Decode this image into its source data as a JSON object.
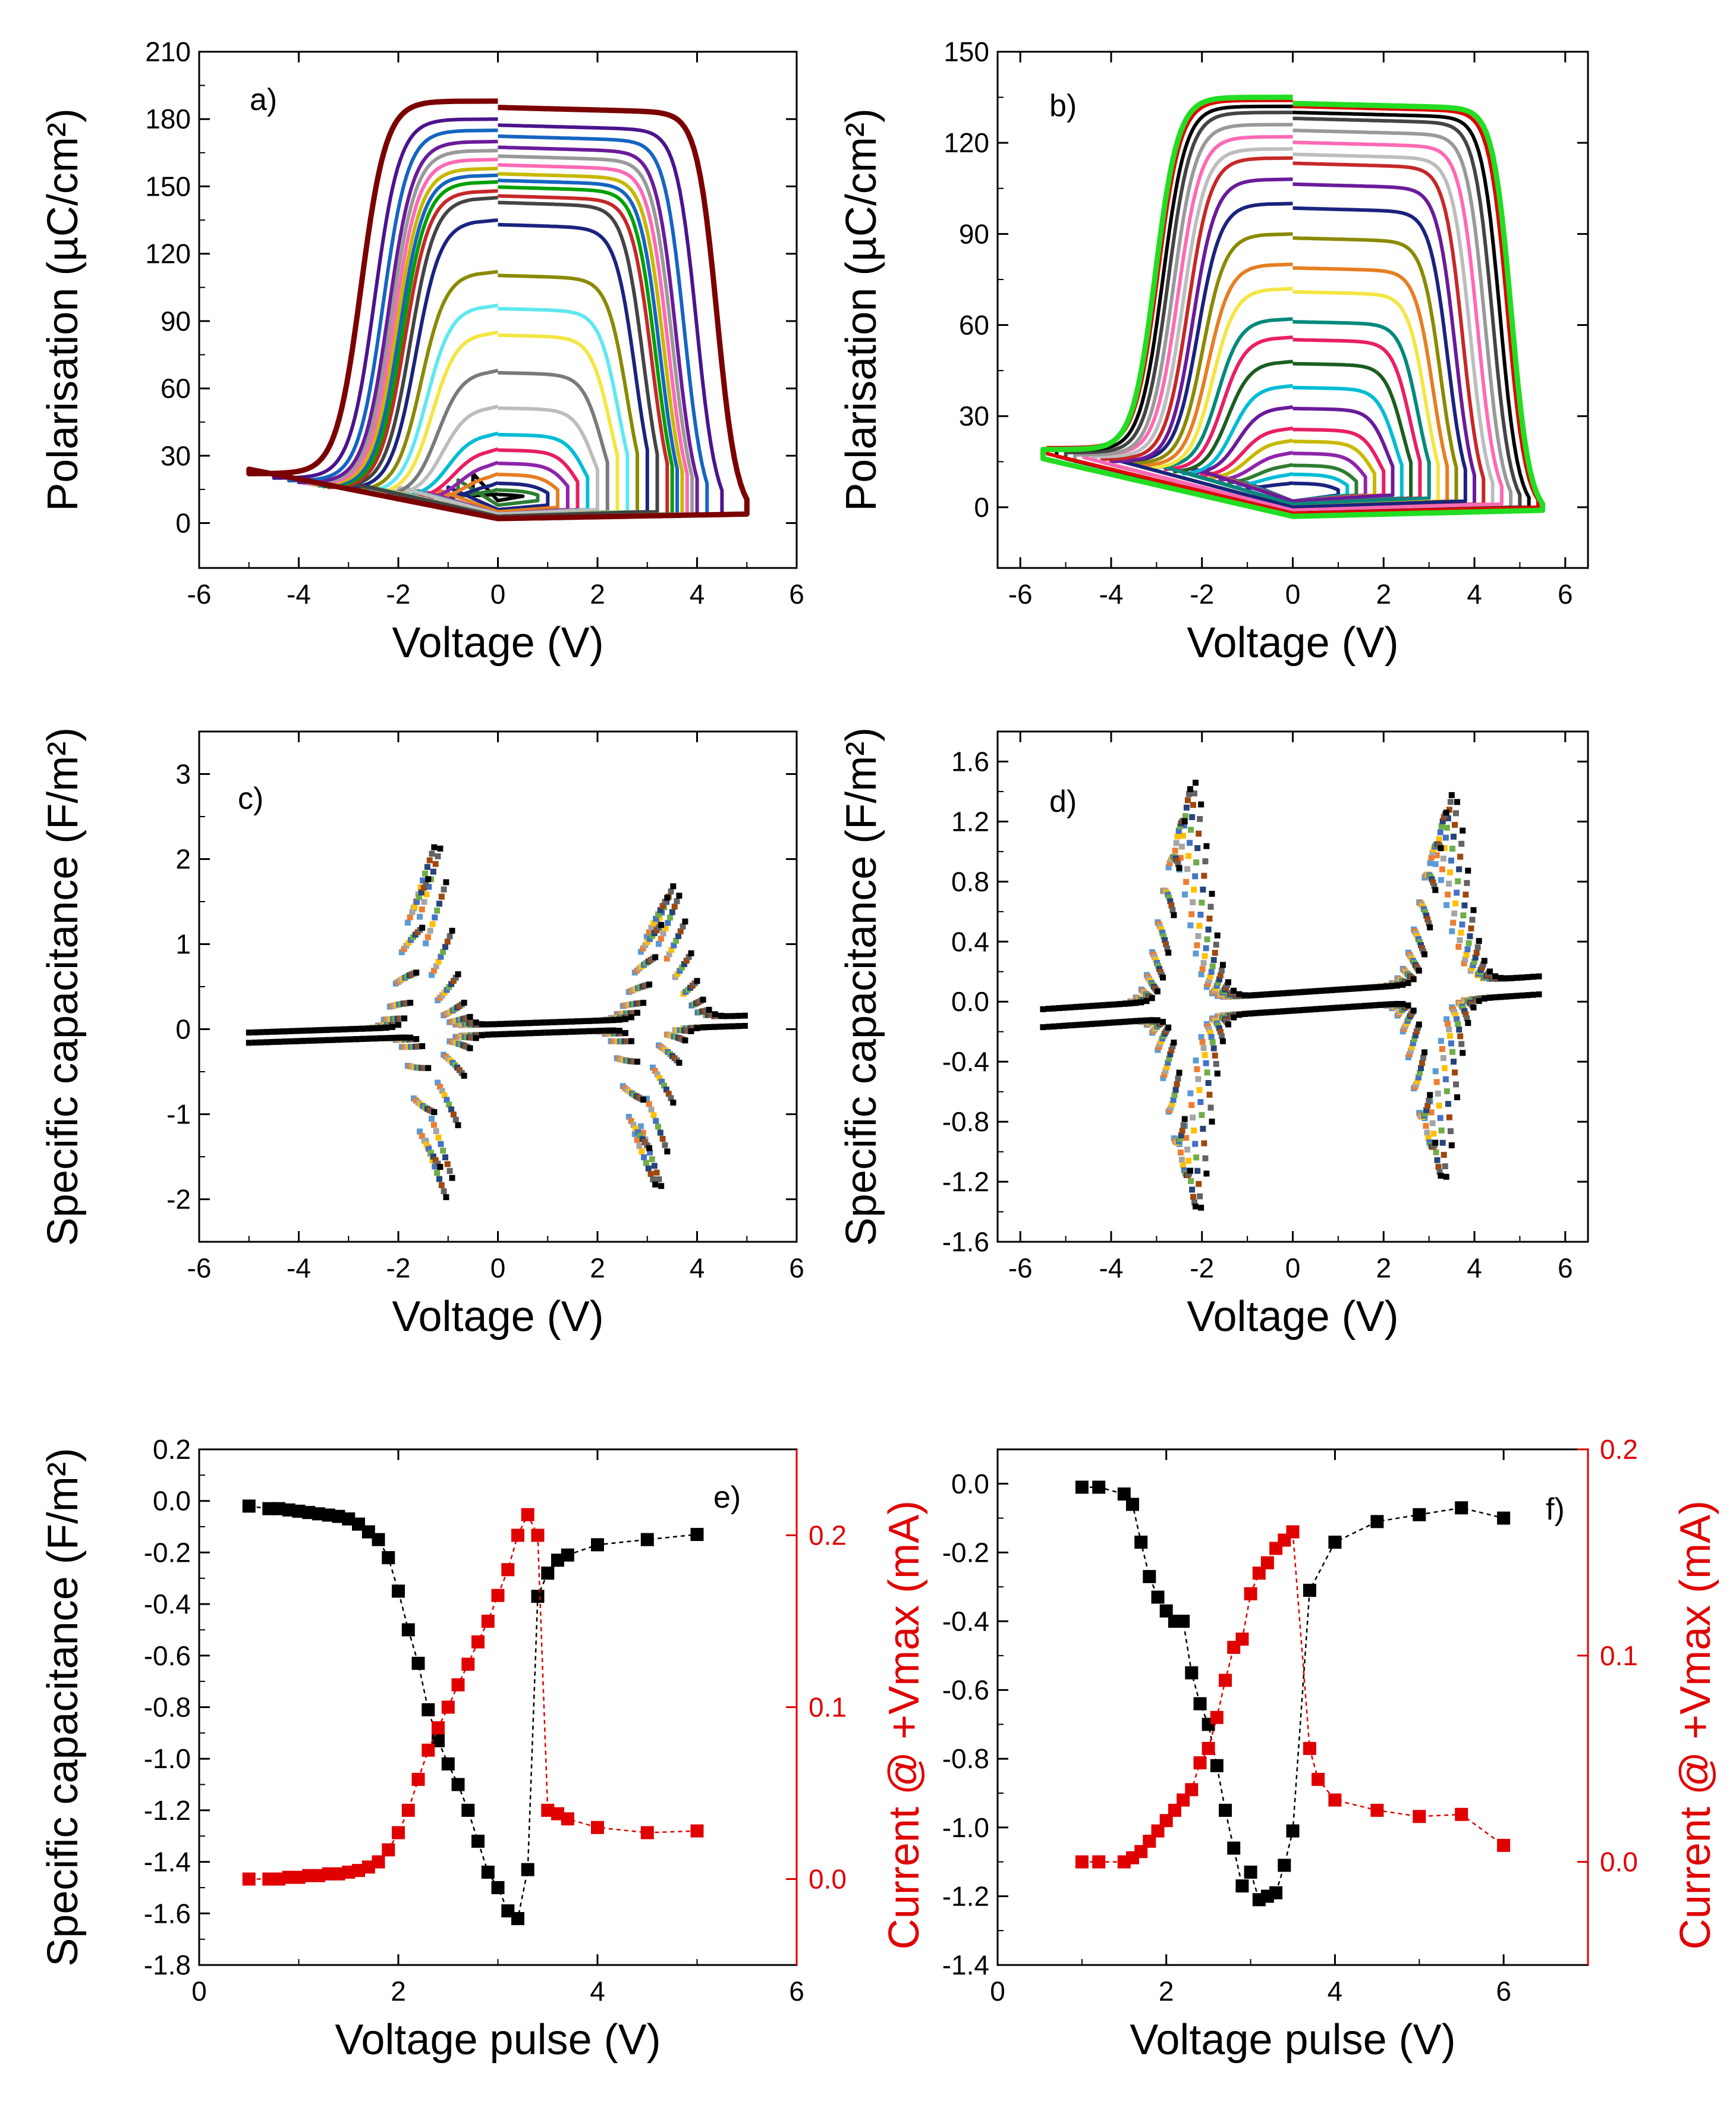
{
  "figure": {
    "panels_count": 6
  },
  "chart_data": [
    {
      "id": "a",
      "type": "line",
      "label": "a)",
      "xlabel": "Voltage (V)",
      "ylabel": "Polarisation (µC/cm²)",
      "xlim": [
        -6,
        6
      ],
      "ylim": [
        -20,
        210
      ],
      "xticks": [
        -6,
        -4,
        -2,
        0,
        2,
        4,
        6
      ],
      "yticks": [
        0,
        30,
        60,
        90,
        120,
        150,
        180,
        210
      ],
      "xtick_labels": [
        "-6",
        "-4",
        "-2",
        "0",
        "2",
        "4",
        "6"
      ],
      "ytick_labels": [
        "0",
        "30",
        "60",
        "90",
        "120",
        "150",
        "180",
        "210"
      ],
      "loops": [
        {
          "vmax": 0.5,
          "pmin": 10,
          "pmax": 13,
          "color": "#000000"
        },
        {
          "vmax": 0.8,
          "pmin": 8,
          "pmax": 15,
          "color": "#2e7d32"
        },
        {
          "vmax": 1.0,
          "pmin": 6,
          "pmax": 18,
          "color": "#1a237e"
        },
        {
          "vmax": 1.2,
          "pmin": 5,
          "pmax": 22,
          "color": "#e67e22"
        },
        {
          "vmax": 1.4,
          "pmin": 4,
          "pmax": 27,
          "color": "#8e24aa"
        },
        {
          "vmax": 1.6,
          "pmin": 4,
          "pmax": 33,
          "color": "#e91e63"
        },
        {
          "vmax": 1.8,
          "pmin": 4,
          "pmax": 40,
          "color": "#00bcd4"
        },
        {
          "vmax": 2.0,
          "pmin": 4,
          "pmax": 52,
          "color": "#bdbdbd"
        },
        {
          "vmax": 2.2,
          "pmin": 3,
          "pmax": 68,
          "color": "#7a7a7a"
        },
        {
          "vmax": 2.4,
          "pmin": 3,
          "pmax": 85,
          "color": "#f4e542"
        },
        {
          "vmax": 2.6,
          "pmin": 3,
          "pmax": 97,
          "color": "#5ee8f0"
        },
        {
          "vmax": 2.8,
          "pmin": 3,
          "pmax": 112,
          "color": "#8a8a00"
        },
        {
          "vmax": 3.0,
          "pmin": 3,
          "pmax": 135,
          "color": "#1a237e"
        },
        {
          "vmax": 3.2,
          "pmin": 3,
          "pmax": 145,
          "color": "#444444"
        },
        {
          "vmax": 3.4,
          "pmin": 2,
          "pmax": 148,
          "color": "#c62828"
        },
        {
          "vmax": 3.5,
          "pmin": 2,
          "pmax": 152,
          "color": "#00a000"
        },
        {
          "vmax": 3.6,
          "pmin": 2,
          "pmax": 155,
          "color": "#1565c0"
        },
        {
          "vmax": 3.7,
          "pmin": 2,
          "pmax": 158,
          "color": "#c8b800"
        },
        {
          "vmax": 3.8,
          "pmin": 2,
          "pmax": 162,
          "color": "#ff69b4"
        },
        {
          "vmax": 3.9,
          "pmin": 2,
          "pmax": 166,
          "color": "#999999"
        },
        {
          "vmax": 4.0,
          "pmin": 2,
          "pmax": 170,
          "color": "#6a1b9a"
        },
        {
          "vmax": 4.2,
          "pmin": 2,
          "pmax": 175,
          "color": "#1565c0"
        },
        {
          "vmax": 4.5,
          "pmin": 2,
          "pmax": 180,
          "color": "#4a148c"
        },
        {
          "vmax": 5.0,
          "pmin": 2,
          "pmax": 188,
          "color": "#7b0000"
        }
      ]
    },
    {
      "id": "b",
      "type": "line",
      "label": "b)",
      "xlabel": "Voltage (V)",
      "ylabel": "Polarisation (µC/cm²)",
      "xlim": [
        -6.5,
        6.5
      ],
      "ylim": [
        -20,
        150
      ],
      "xticks": [
        -6,
        -4,
        -2,
        0,
        2,
        4,
        6
      ],
      "yticks": [
        0,
        30,
        60,
        90,
        120,
        150
      ],
      "xtick_labels": [
        "-6",
        "-4",
        "-2",
        "0",
        "2",
        "4",
        "6"
      ],
      "ytick_labels": [
        "0",
        "30",
        "60",
        "90",
        "120",
        "150"
      ],
      "loops": [
        {
          "vmax": 1.0,
          "pmin": 2,
          "pmax": 8,
          "color": "#1a237e"
        },
        {
          "vmax": 1.2,
          "pmin": 2,
          "pmax": 11,
          "color": "#00bcd4"
        },
        {
          "vmax": 1.4,
          "pmin": 2,
          "pmax": 14,
          "color": "#2e7d32"
        },
        {
          "vmax": 1.6,
          "pmin": 2,
          "pmax": 18,
          "color": "#8e24aa"
        },
        {
          "vmax": 1.8,
          "pmin": 2,
          "pmax": 22,
          "color": "#c8b800"
        },
        {
          "vmax": 2.0,
          "pmin": 2,
          "pmax": 26,
          "color": "#e91e63"
        },
        {
          "vmax": 2.2,
          "pmin": 2,
          "pmax": 33,
          "color": "#6a1b9a"
        },
        {
          "vmax": 2.4,
          "pmin": 1,
          "pmax": 40,
          "color": "#00bcd4"
        },
        {
          "vmax": 2.6,
          "pmin": 1,
          "pmax": 48,
          "color": "#1b5e20"
        },
        {
          "vmax": 2.8,
          "pmin": 1,
          "pmax": 56,
          "color": "#e91e63"
        },
        {
          "vmax": 3.0,
          "pmin": 1,
          "pmax": 62,
          "color": "#00897b"
        },
        {
          "vmax": 3.2,
          "pmin": 0,
          "pmax": 72,
          "color": "#f4e542"
        },
        {
          "vmax": 3.4,
          "pmin": 0,
          "pmax": 80,
          "color": "#e67e22"
        },
        {
          "vmax": 3.6,
          "pmin": 0,
          "pmax": 90,
          "color": "#8a8a00"
        },
        {
          "vmax": 3.8,
          "pmin": 0,
          "pmax": 100,
          "color": "#1a237e"
        },
        {
          "vmax": 4.0,
          "pmin": -1,
          "pmax": 108,
          "color": "#6a1b9a"
        },
        {
          "vmax": 4.2,
          "pmin": -1,
          "pmax": 115,
          "color": "#c62828"
        },
        {
          "vmax": 4.4,
          "pmin": -1,
          "pmax": 118,
          "color": "#bdbdbd"
        },
        {
          "vmax": 4.6,
          "pmin": -1,
          "pmax": 122,
          "color": "#ff69b4"
        },
        {
          "vmax": 4.8,
          "pmin": -2,
          "pmax": 126,
          "color": "#999999"
        },
        {
          "vmax": 5.0,
          "pmin": -2,
          "pmax": 130,
          "color": "#444444"
        },
        {
          "vmax": 5.2,
          "pmin": -2,
          "pmax": 132,
          "color": "#000000"
        },
        {
          "vmax": 5.4,
          "pmin": -2,
          "pmax": 134,
          "color": "#e00000"
        },
        {
          "vmax": 5.5,
          "pmin": -3,
          "pmax": 135,
          "color": "#22dd22"
        }
      ]
    },
    {
      "id": "c",
      "type": "scatter",
      "label": "c)",
      "xlabel": "Voltage (V)",
      "ylabel": "Specific capacitance (F/m²)",
      "xlim": [
        -6,
        6
      ],
      "ylim": [
        -2.5,
        3.5
      ],
      "xticks": [
        -6,
        -4,
        -2,
        0,
        2,
        4,
        6
      ],
      "yticks": [
        -2,
        -1,
        0,
        1,
        2,
        3
      ],
      "xtick_labels": [
        "-6",
        "-4",
        "-2",
        "0",
        "2",
        "4",
        "6"
      ],
      "ytick_labels": [
        "-2",
        "-1",
        "0",
        "1",
        "2",
        "3"
      ],
      "sweep_vmax": 5.0,
      "peaks": [
        {
          "v": -1.45,
          "c": 2.15,
          "w": 0.45
        },
        {
          "v": 3.3,
          "c": 1.55,
          "w": 0.5
        },
        {
          "v": -1.25,
          "c": -1.9,
          "w": 0.35
        },
        {
          "v": 3.0,
          "c": -1.9,
          "w": 0.4
        }
      ],
      "colors": [
        "#5b9bd5",
        "#ed7d31",
        "#a5a5a5",
        "#ffc000",
        "#4472c4",
        "#70ad47",
        "#264478",
        "#9e480e",
        "#636363",
        "#000000"
      ]
    },
    {
      "id": "d",
      "type": "scatter",
      "label": "d)",
      "xlabel": "Voltage (V)",
      "ylabel": "Specific capacitance (F/m²)",
      "xlim": [
        -6.5,
        6.5
      ],
      "ylim": [
        -1.6,
        1.8
      ],
      "xticks": [
        -6,
        -4,
        -2,
        0,
        2,
        4,
        6
      ],
      "yticks": [
        -1.6,
        -1.2,
        -0.8,
        -0.4,
        0.0,
        0.4,
        0.8,
        1.2,
        1.6
      ],
      "xtick_labels": [
        "-6",
        "-4",
        "-2",
        "0",
        "2",
        "4",
        "6"
      ],
      "ytick_labels": [
        "-1.6",
        "-1.2",
        "-0.8",
        "-0.4",
        "0.0",
        "0.4",
        "0.8",
        "1.2",
        "1.6"
      ],
      "sweep_vmax": 5.5,
      "peaks": [
        {
          "v": -2.4,
          "c": 1.45,
          "w": 0.55
        },
        {
          "v": 3.3,
          "c": 1.25,
          "w": 0.55
        },
        {
          "v": -2.3,
          "c": -1.3,
          "w": 0.45
        },
        {
          "v": 3.1,
          "c": -1.2,
          "w": 0.45
        }
      ],
      "colors": [
        "#5b9bd5",
        "#ed7d31",
        "#a5a5a5",
        "#ffc000",
        "#4472c4",
        "#70ad47",
        "#264478",
        "#9e480e",
        "#636363",
        "#000000"
      ]
    },
    {
      "id": "e",
      "type": "scatter-line",
      "label": "e)",
      "xlabel": "Voltage pulse (V)",
      "ylabel": "Specific capacitance (F/m²)",
      "y2label": "Current @ +Vmax (mA)",
      "xlim": [
        0,
        6
      ],
      "ylim": [
        -1.8,
        0.2
      ],
      "y2lim": [
        -0.05,
        0.25
      ],
      "xticks": [
        0,
        2,
        4,
        6
      ],
      "xtick_labels": [
        "0",
        "2",
        "4",
        "6"
      ],
      "yticks": [
        -1.8,
        -1.6,
        -1.4,
        -1.2,
        -1.0,
        -0.8,
        -0.6,
        -0.4,
        -0.2,
        0.0,
        0.2
      ],
      "ytick_labels": [
        "-1.8",
        "-1.6",
        "-1.4",
        "-1.2",
        "-1.0",
        "-0.8",
        "-0.6",
        "-0.4",
        "-0.2",
        "0.0",
        "0.2"
      ],
      "y2ticks": [
        0.0,
        0.1,
        0.2
      ],
      "y2tick_labels": [
        "0.0",
        "0.1",
        "0.2"
      ],
      "series": [
        {
          "name": "Specific capacitance",
          "axis": "left",
          "color": "#000000",
          "x": [
            0.5,
            0.7,
            0.8,
            0.9,
            1.0,
            1.1,
            1.2,
            1.3,
            1.4,
            1.5,
            1.6,
            1.7,
            1.8,
            1.9,
            2.0,
            2.1,
            2.2,
            2.3,
            2.4,
            2.5,
            2.6,
            2.7,
            2.8,
            2.9,
            3.0,
            3.1,
            3.2,
            3.3,
            3.4,
            3.5,
            3.6,
            3.7,
            4.0,
            4.5,
            5.0
          ],
          "y": [
            -0.02,
            -0.03,
            -0.03,
            -0.035,
            -0.04,
            -0.045,
            -0.05,
            -0.055,
            -0.06,
            -0.07,
            -0.09,
            -0.12,
            -0.15,
            -0.22,
            -0.35,
            -0.5,
            -0.63,
            -0.81,
            -0.93,
            -1.02,
            -1.1,
            -1.2,
            -1.32,
            -1.44,
            -1.5,
            -1.59,
            -1.62,
            -1.43,
            -0.37,
            -0.28,
            -0.23,
            -0.21,
            -0.17,
            -0.15,
            -0.13
          ]
        },
        {
          "name": "Current @ +Vmax",
          "axis": "right",
          "color": "#e00000",
          "x": [
            0.5,
            0.7,
            0.8,
            0.9,
            1.0,
            1.1,
            1.2,
            1.3,
            1.4,
            1.5,
            1.6,
            1.7,
            1.8,
            1.9,
            2.0,
            2.1,
            2.2,
            2.3,
            2.4,
            2.5,
            2.6,
            2.7,
            2.8,
            2.9,
            3.0,
            3.1,
            3.2,
            3.3,
            3.4,
            3.5,
            3.6,
            3.7,
            4.0,
            4.5,
            5.0
          ],
          "y": [
            0.0,
            0.0,
            0.0,
            0.001,
            0.001,
            0.002,
            0.002,
            0.003,
            0.003,
            0.004,
            0.005,
            0.007,
            0.01,
            0.017,
            0.027,
            0.04,
            0.058,
            0.075,
            0.088,
            0.1,
            0.113,
            0.125,
            0.138,
            0.15,
            0.165,
            0.18,
            0.2,
            0.212,
            0.2,
            0.04,
            0.038,
            0.035,
            0.03,
            0.027,
            0.028
          ]
        }
      ]
    },
    {
      "id": "f",
      "type": "scatter-line",
      "label": "f)",
      "xlabel": "Voltage pulse (V)",
      "ylabel": "",
      "y2label": "Current @ +Vmax (mA)",
      "xlim": [
        0,
        7
      ],
      "ylim": [
        -1.4,
        0.1
      ],
      "y2lim": [
        -0.05,
        0.2
      ],
      "xticks": [
        0,
        2,
        4,
        6
      ],
      "xtick_labels": [
        "0",
        "2",
        "4",
        "6"
      ],
      "yticks": [
        -1.4,
        -1.2,
        -1.0,
        -0.8,
        -0.6,
        -0.4,
        -0.2,
        0.0
      ],
      "ytick_labels": [
        "-1.4",
        "-1.2",
        "-1.0",
        "-0.8",
        "-0.6",
        "-0.4",
        "-0.2",
        "0.0"
      ],
      "y2ticks": [
        0.0,
        0.1,
        0.2
      ],
      "y2tick_labels": [
        "0.0",
        "0.1",
        "0.2"
      ],
      "series": [
        {
          "name": "Specific capacitance",
          "axis": "left",
          "color": "#000000",
          "x": [
            1.0,
            1.2,
            1.5,
            1.6,
            1.7,
            1.8,
            1.9,
            2.0,
            2.1,
            2.2,
            2.3,
            2.4,
            2.5,
            2.6,
            2.7,
            2.8,
            2.9,
            3.0,
            3.1,
            3.2,
            3.3,
            3.4,
            3.5,
            3.7,
            4.0,
            4.5,
            5.0,
            5.5,
            6.0
          ],
          "y": [
            -0.01,
            -0.01,
            -0.03,
            -0.06,
            -0.17,
            -0.27,
            -0.33,
            -0.37,
            -0.4,
            -0.4,
            -0.55,
            -0.64,
            -0.7,
            -0.82,
            -0.95,
            -1.06,
            -1.17,
            -1.13,
            -1.21,
            -1.2,
            -1.19,
            -1.11,
            -1.01,
            -0.31,
            -0.17,
            -0.11,
            -0.09,
            -0.07,
            -0.1
          ]
        },
        {
          "name": "Current @ +Vmax",
          "axis": "right",
          "color": "#e00000",
          "x": [
            1.0,
            1.2,
            1.5,
            1.6,
            1.7,
            1.8,
            1.9,
            2.0,
            2.1,
            2.2,
            2.3,
            2.4,
            2.5,
            2.6,
            2.7,
            2.8,
            2.9,
            3.0,
            3.1,
            3.2,
            3.3,
            3.4,
            3.5,
            3.7,
            3.8,
            4.0,
            4.5,
            5.0,
            5.5,
            6.0
          ],
          "y": [
            0.0,
            0.0,
            0.0,
            0.002,
            0.005,
            0.01,
            0.015,
            0.02,
            0.025,
            0.03,
            0.035,
            0.048,
            0.055,
            0.07,
            0.088,
            0.104,
            0.108,
            0.13,
            0.14,
            0.145,
            0.152,
            0.156,
            0.16,
            0.055,
            0.04,
            0.03,
            0.025,
            0.022,
            0.023,
            0.008
          ]
        }
      ]
    }
  ]
}
